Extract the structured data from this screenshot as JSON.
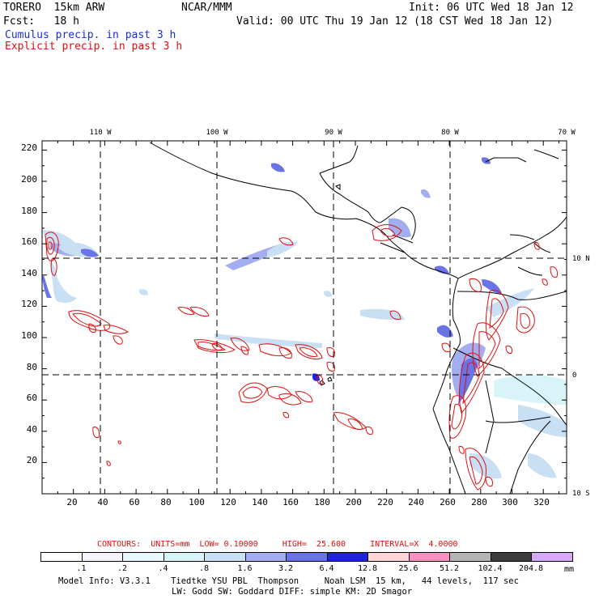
{
  "header": {
    "model": "TORERO  15km ARW",
    "org": "NCAR/MMM",
    "init": "Init: 06 UTC Wed 18 Jan 12",
    "fcst": "Fcst:   18 h",
    "valid": "Valid: 00 UTC Thu 19 Jan 12 (18 CST Wed 18 Jan 12)",
    "cumulus": "Cumulus precip. in past 3 h",
    "explicit": "Explicit precip. in past 3 h"
  },
  "map": {
    "top_lon_labels": [
      "110 W",
      "100 W",
      "90 W",
      "80 W",
      "70 W"
    ],
    "right_lat_labels": [
      "10 N",
      "0",
      "10 S"
    ],
    "y_ticks": [
      "220",
      "200",
      "180",
      "160",
      "140",
      "120",
      "100",
      "80",
      "60",
      "40",
      "20"
    ],
    "x_ticks": [
      "20",
      "40",
      "60",
      "80",
      "100",
      "120",
      "140",
      "160",
      "180",
      "200",
      "220",
      "240",
      "260",
      "280",
      "300",
      "320"
    ]
  },
  "contours": {
    "label": "CONTOURS:  UNITS=mm  LOW= 0.10000     HIGH=  25.600     INTERVAL=X  4.0000"
  },
  "legend": {
    "unit": "mm",
    "labels": [
      ".1",
      ".2",
      ".4",
      ".8",
      "1.6",
      "3.2",
      "6.4",
      "12.8",
      "25.6",
      "51.2",
      "102.4",
      "204.8"
    ],
    "colors": [
      "#ffffff",
      "#f4f4ff",
      "#e8f6ff",
      "#d8f4f8",
      "#c9dff4",
      "#a3aef0",
      "#6a74e6",
      "#2222dd",
      "#ffd6d6",
      "#f590c0",
      "#b4b4b4",
      "#3c3c3c",
      "#d8a8f8"
    ]
  },
  "footer": {
    "line1": "Model Info: V3.3.1    Tiedtke YSU PBL  Thompson     Noah LSM  15 km,   44 levels,  117 sec",
    "line2": "LW: Godd SW: Goddard DIFF: simple KM: 2D Smagor"
  }
}
